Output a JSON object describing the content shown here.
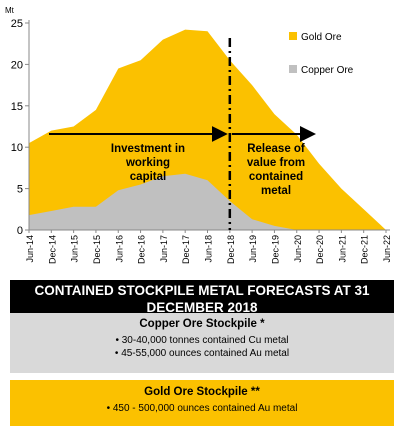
{
  "chart_data": {
    "type": "area",
    "y_unit_label": "Mt",
    "ylim": [
      0,
      25
    ],
    "y_ticks": [
      0,
      5,
      10,
      15,
      20,
      25
    ],
    "categories": [
      "Jun-14",
      "Dec-14",
      "Jun-15",
      "Dec-15",
      "Jun-16",
      "Dec-16",
      "Jun-17",
      "Dec-17",
      "Jun-18",
      "Dec-18",
      "Jun-19",
      "Dec-19",
      "Jun-20",
      "Dec-20",
      "Jun-21",
      "Dec-21",
      "Jun-22"
    ],
    "series": [
      {
        "name": "Gold Ore",
        "color": "#fbc100",
        "values": [
          10.5,
          12,
          12.5,
          14.5,
          19.5,
          20.5,
          23,
          24.2,
          24,
          20.5,
          17.5,
          14,
          11.5,
          8,
          5,
          2.5,
          0
        ]
      },
      {
        "name": "Copper Ore",
        "color": "#c0c0c0",
        "values": [
          1.8,
          2.3,
          2.8,
          2.8,
          4.8,
          5.5,
          6.5,
          6.8,
          6,
          3.5,
          1.3,
          0.5,
          0,
          0,
          0,
          0,
          0
        ]
      }
    ],
    "legend_position": "top-right",
    "divider_at": "Dec-18",
    "annotations": [
      {
        "text": "Investment in working capital",
        "lines": [
          "Investment in",
          "working",
          "capital"
        ]
      },
      {
        "text": "Release of value from contained metal",
        "lines": [
          "Release of",
          "value from",
          "contained",
          "metal"
        ]
      }
    ]
  },
  "title_lines": [
    "CONTAINED STOCKPILE METAL FORECASTS AT 31",
    "DECEMBER 2018"
  ],
  "copper_box": {
    "title": "Copper Ore Stockpile *",
    "items": [
      "30-40,000 tonnes contained Cu metal",
      "45-55,000 ounces contained Au metal"
    ]
  },
  "gold_box": {
    "title": "Gold Ore Stockpile **",
    "items": [
      "450 - 500,000 ounces contained Au metal"
    ]
  }
}
